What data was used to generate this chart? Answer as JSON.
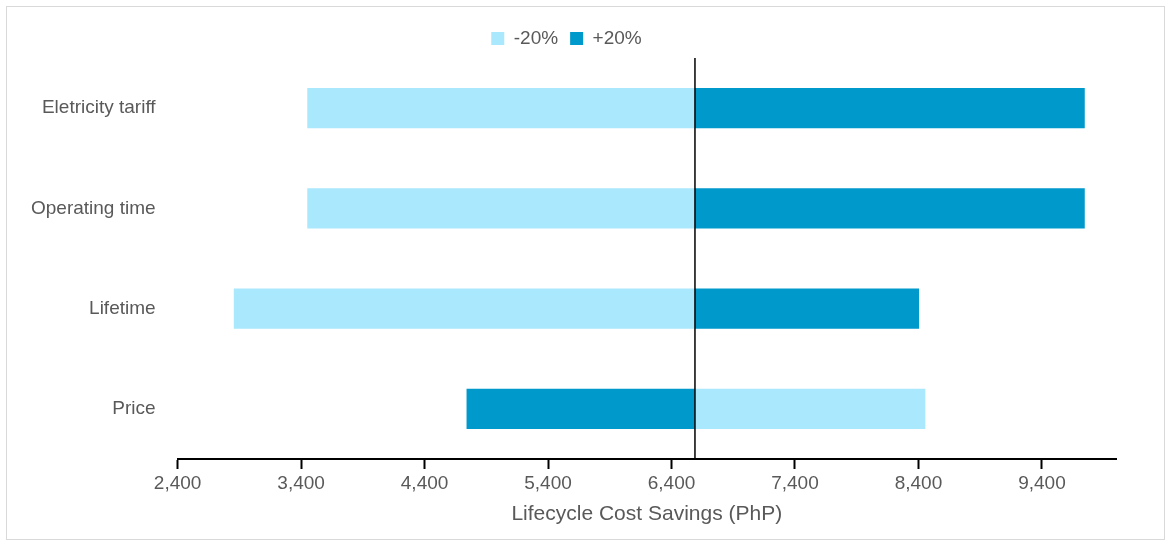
{
  "chart_data": {
    "type": "bar",
    "orientation": "horizontal",
    "xlabel": "Lifecycle Cost Savings (PhP)",
    "categories": [
      "Eletricity tariff",
      "Operating time",
      "Lifetime",
      "Price"
    ],
    "series": [
      {
        "name": "-20%",
        "color": "#a9e8fd",
        "base": [
          3450,
          3450,
          2855,
          6590
        ],
        "values": [
          3140,
          3140,
          3735,
          1866
        ]
      },
      {
        "name": "+20%",
        "color": "#0099cc",
        "base": [
          6590,
          6590,
          6590,
          4740
        ],
        "values": [
          3157,
          3157,
          1815,
          1850
        ]
      }
    ],
    "xlim": [
      2400,
      10000
    ],
    "xticks": [
      {
        "value": 2400,
        "label": "2,400"
      },
      {
        "value": 3400,
        "label": "3,400"
      },
      {
        "value": 4400,
        "label": "4,400"
      },
      {
        "value": 5400,
        "label": "5,400"
      },
      {
        "value": 6400,
        "label": "6,400"
      },
      {
        "value": 7400,
        "label": "7,400"
      },
      {
        "value": 8400,
        "label": "8,400"
      },
      {
        "value": 9400,
        "label": "9,400"
      }
    ],
    "ref_lines": [
      {
        "axis": "x",
        "value": 6590,
        "color": "#000000"
      }
    ],
    "grid": false,
    "legend": "top"
  }
}
